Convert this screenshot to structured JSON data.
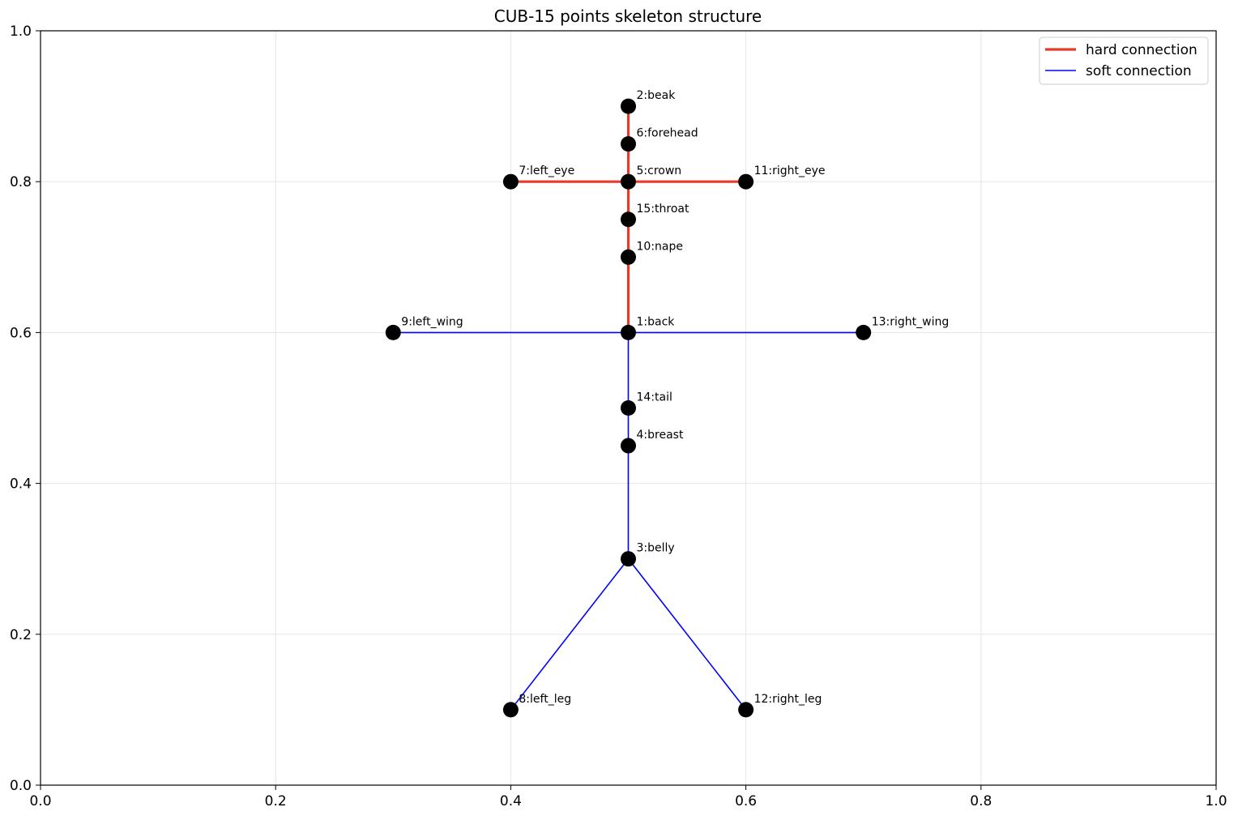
{
  "chart_data": {
    "type": "scatter",
    "title": "CUB-15 points skeleton structure",
    "xlabel": "",
    "ylabel": "",
    "xlim": [
      0.0,
      1.0
    ],
    "ylim": [
      0.0,
      1.0
    ],
    "x_ticks": [
      "0.0",
      "0.2",
      "0.4",
      "0.6",
      "0.8",
      "1.0"
    ],
    "y_ticks": [
      "0.0",
      "0.2",
      "0.4",
      "0.6",
      "0.8",
      "1.0"
    ],
    "grid": true,
    "legend_position": "top-right",
    "legend": [
      {
        "name": "hard connection",
        "color": "#e8392b",
        "style": "thick"
      },
      {
        "name": "soft connection",
        "color": "#0000ff",
        "style": "thin"
      }
    ],
    "points": [
      {
        "label": "1:back",
        "x": 0.5,
        "y": 0.6
      },
      {
        "label": "2:beak",
        "x": 0.5,
        "y": 0.9
      },
      {
        "label": "3:belly",
        "x": 0.5,
        "y": 0.3
      },
      {
        "label": "4:breast",
        "x": 0.5,
        "y": 0.45
      },
      {
        "label": "5:crown",
        "x": 0.5,
        "y": 0.8
      },
      {
        "label": "6:forehead",
        "x": 0.5,
        "y": 0.85
      },
      {
        "label": "7:left_eye",
        "x": 0.4,
        "y": 0.8
      },
      {
        "label": "8:left_leg",
        "x": 0.4,
        "y": 0.1
      },
      {
        "label": "9:left_wing",
        "x": 0.3,
        "y": 0.6
      },
      {
        "label": "10:nape",
        "x": 0.5,
        "y": 0.7
      },
      {
        "label": "11:right_eye",
        "x": 0.6,
        "y": 0.8
      },
      {
        "label": "12:right_leg",
        "x": 0.6,
        "y": 0.1
      },
      {
        "label": "13:right_wing",
        "x": 0.7,
        "y": 0.6
      },
      {
        "label": "14:tail",
        "x": 0.5,
        "y": 0.5
      },
      {
        "label": "15:throat",
        "x": 0.5,
        "y": 0.75
      }
    ],
    "hard_connections": [
      [
        2,
        6
      ],
      [
        6,
        5
      ],
      [
        5,
        7
      ],
      [
        5,
        11
      ],
      [
        5,
        15
      ],
      [
        15,
        10
      ],
      [
        10,
        1
      ]
    ],
    "soft_connections": [
      [
        1,
        9
      ],
      [
        1,
        13
      ],
      [
        1,
        14
      ],
      [
        14,
        4
      ],
      [
        4,
        3
      ],
      [
        3,
        8
      ],
      [
        3,
        12
      ]
    ],
    "colors": {
      "hard": "#e8392b",
      "soft": "#0000ff",
      "point": "#000000",
      "grid": "#e5e5e5"
    }
  }
}
